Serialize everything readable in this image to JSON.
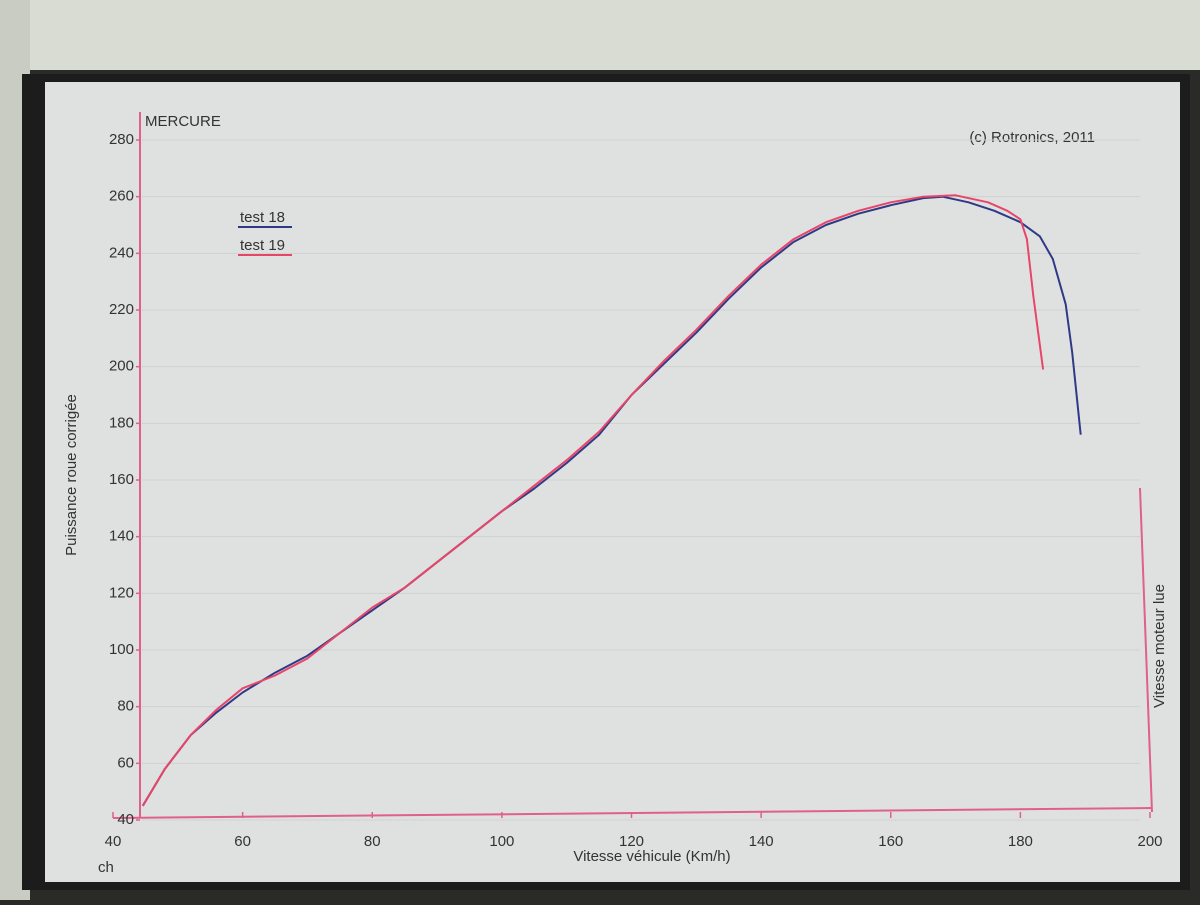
{
  "chart_data": {
    "type": "line",
    "title": "MERCURE",
    "subtitle": "(c) Rotronics, 2011",
    "y_label": "Puissance roue corrigée",
    "y_unit": "ch",
    "x_label": "Vitesse véhicule (Km/h)",
    "y2_label": "Vitesse moteur lue",
    "xlim": [
      40,
      200
    ],
    "xticks": [
      40,
      60,
      80,
      100,
      120,
      140,
      160,
      180,
      200
    ],
    "ylim": [
      40,
      280
    ],
    "yticks": [
      40,
      60,
      80,
      100,
      120,
      140,
      160,
      180,
      200,
      220,
      240,
      260,
      280
    ],
    "grid": true,
    "legend": "top-left",
    "series": [
      {
        "name": "test 18",
        "color": "#2e3a86",
        "x": [
          44.6,
          48,
          52,
          56,
          60,
          65,
          70,
          75,
          80,
          85,
          90,
          95,
          100,
          105,
          110,
          115,
          120,
          125,
          130,
          135,
          140,
          145,
          150,
          155,
          160,
          165,
          168,
          172,
          176,
          180,
          183,
          185,
          187,
          188,
          189.3
        ],
        "values": [
          45,
          58,
          70,
          78,
          85,
          92,
          98,
          106,
          114,
          122,
          131,
          140,
          149,
          157,
          166,
          176,
          190,
          201,
          212,
          224,
          235,
          244,
          250,
          254,
          257,
          259.5,
          260,
          258,
          255,
          251,
          246,
          238,
          222,
          205,
          176
        ]
      },
      {
        "name": "test 19",
        "color": "#e8456a",
        "x": [
          44.6,
          48,
          52,
          56,
          60,
          65,
          70,
          75,
          80,
          85,
          90,
          95,
          100,
          105,
          110,
          115,
          120,
          125,
          130,
          135,
          140,
          145,
          150,
          155,
          160,
          165,
          170,
          175,
          178,
          180,
          181,
          182,
          183.5
        ],
        "values": [
          45,
          58,
          70,
          79,
          86.5,
          91,
          97,
          106,
          115,
          122,
          131,
          140,
          149,
          158,
          167,
          177,
          190,
          202,
          213,
          225,
          236,
          245,
          251,
          255,
          258,
          260,
          260.5,
          258,
          255,
          252,
          245,
          225,
          199
        ]
      }
    ]
  }
}
